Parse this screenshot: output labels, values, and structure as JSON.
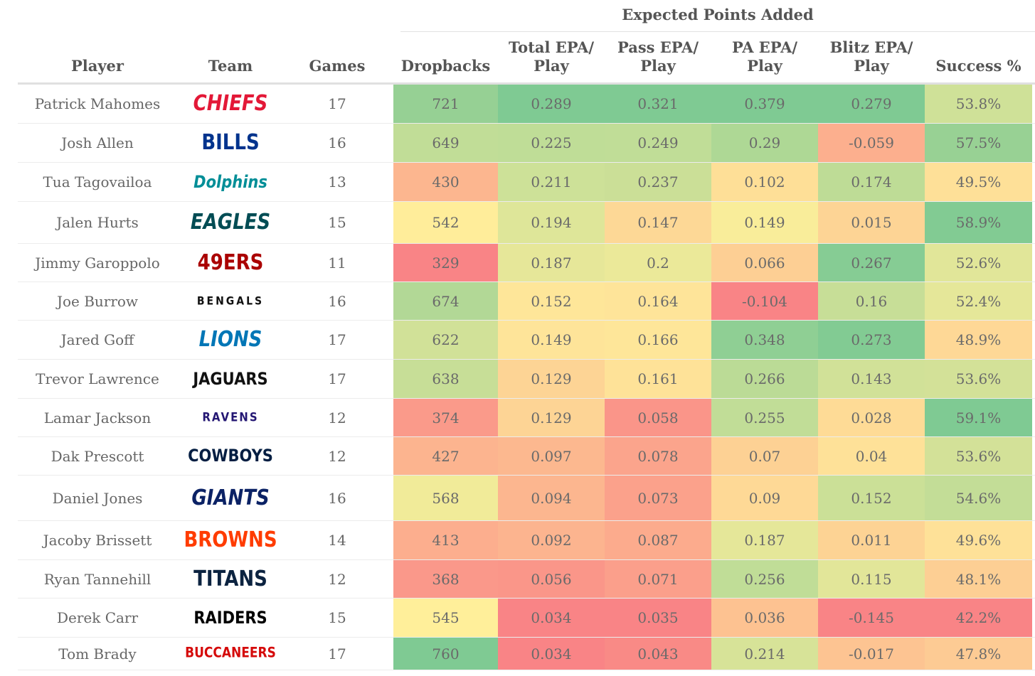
{
  "table": {
    "group_header": "Expected Points Added",
    "columns": {
      "player": "Player",
      "team": "Team",
      "games": "Games",
      "dropbacks": "Dropbacks",
      "total_epa": "Total EPA/\nPlay",
      "pass_epa": "Pass EPA/\nPlay",
      "pa_epa": "PA EPA/\nPlay",
      "blitz_epa": "Blitz EPA/\nPlay",
      "success": "Success %"
    },
    "rows": [
      {
        "player": "Patrick Mahomes",
        "team": "CHIEFS",
        "team_color": "#e31837",
        "games": "17",
        "dropbacks": "721",
        "total_epa": "0.289",
        "pass_epa": "0.321",
        "pa_epa": "0.379",
        "blitz_epa": "0.279",
        "success": "53.8%"
      },
      {
        "player": "Josh Allen",
        "team": "BILLS",
        "team_color": "#00338d",
        "games": "16",
        "dropbacks": "649",
        "total_epa": "0.225",
        "pass_epa": "0.249",
        "pa_epa": "0.29",
        "blitz_epa": "-0.059",
        "success": "57.5%"
      },
      {
        "player": "Tua Tagovailoa",
        "team": "Dolphins",
        "team_color": "#008e97",
        "games": "13",
        "dropbacks": "430",
        "total_epa": "0.211",
        "pass_epa": "0.237",
        "pa_epa": "0.102",
        "blitz_epa": "0.174",
        "success": "49.5%"
      },
      {
        "player": "Jalen Hurts",
        "team": "EAGLES",
        "team_color": "#004c54",
        "games": "15",
        "dropbacks": "542",
        "total_epa": "0.194",
        "pass_epa": "0.147",
        "pa_epa": "0.149",
        "blitz_epa": "0.015",
        "success": "58.9%"
      },
      {
        "player": "Jimmy Garoppolo",
        "team": "49ERS",
        "team_color": "#aa0000",
        "games": "11",
        "dropbacks": "329",
        "total_epa": "0.187",
        "pass_epa": "0.2",
        "pa_epa": "0.066",
        "blitz_epa": "0.267",
        "success": "52.6%"
      },
      {
        "player": "Joe Burrow",
        "team": "BENGALS",
        "team_color": "#111111",
        "games": "16",
        "dropbacks": "674",
        "total_epa": "0.152",
        "pass_epa": "0.164",
        "pa_epa": "-0.104",
        "blitz_epa": "0.16",
        "success": "52.4%"
      },
      {
        "player": "Jared Goff",
        "team": "LIONS",
        "team_color": "#0076b6",
        "games": "17",
        "dropbacks": "622",
        "total_epa": "0.149",
        "pass_epa": "0.166",
        "pa_epa": "0.348",
        "blitz_epa": "0.273",
        "success": "48.9%"
      },
      {
        "player": "Trevor Lawrence",
        "team": "JAGUARS",
        "team_color": "#111111",
        "games": "17",
        "dropbacks": "638",
        "total_epa": "0.129",
        "pass_epa": "0.161",
        "pa_epa": "0.266",
        "blitz_epa": "0.143",
        "success": "53.6%"
      },
      {
        "player": "Lamar Jackson",
        "team": "RAVENS",
        "team_color": "#241773",
        "games": "12",
        "dropbacks": "374",
        "total_epa": "0.129",
        "pass_epa": "0.058",
        "pa_epa": "0.255",
        "blitz_epa": "0.028",
        "success": "59.1%"
      },
      {
        "player": "Dak Prescott",
        "team": "COWBOYS",
        "team_color": "#041e42",
        "games": "12",
        "dropbacks": "427",
        "total_epa": "0.097",
        "pass_epa": "0.078",
        "pa_epa": "0.07",
        "blitz_epa": "0.04",
        "success": "53.6%"
      },
      {
        "player": "Daniel Jones",
        "team": "GIANTS",
        "team_color": "#0b2265",
        "games": "16",
        "dropbacks": "568",
        "total_epa": "0.094",
        "pass_epa": "0.073",
        "pa_epa": "0.09",
        "blitz_epa": "0.152",
        "success": "54.6%"
      },
      {
        "player": "Jacoby Brissett",
        "team": "BROWNS",
        "team_color": "#ff3c00",
        "games": "14",
        "dropbacks": "413",
        "total_epa": "0.092",
        "pass_epa": "0.087",
        "pa_epa": "0.187",
        "blitz_epa": "0.011",
        "success": "49.6%"
      },
      {
        "player": "Ryan Tannehill",
        "team": "TITANS",
        "team_color": "#0c2340",
        "games": "12",
        "dropbacks": "368",
        "total_epa": "0.056",
        "pass_epa": "0.071",
        "pa_epa": "0.256",
        "blitz_epa": "0.115",
        "success": "48.1%"
      },
      {
        "player": "Derek Carr",
        "team": "RAIDERS",
        "team_color": "#000000",
        "games": "15",
        "dropbacks": "545",
        "total_epa": "0.034",
        "pass_epa": "0.035",
        "pa_epa": "0.036",
        "blitz_epa": "-0.145",
        "success": "42.2%"
      },
      {
        "player": "Tom Brady",
        "team": "BUCCANEERS",
        "team_color": "#d50a0a",
        "games": "17",
        "dropbacks": "760",
        "total_epa": "0.034",
        "pass_epa": "0.043",
        "pa_epa": "0.214",
        "blitz_epa": "-0.017",
        "success": "47.8%"
      }
    ]
  },
  "colors": {
    "scale_low": "#f8696b",
    "scale_mid": "#ffeb84",
    "scale_high": "#63be7b"
  }
}
